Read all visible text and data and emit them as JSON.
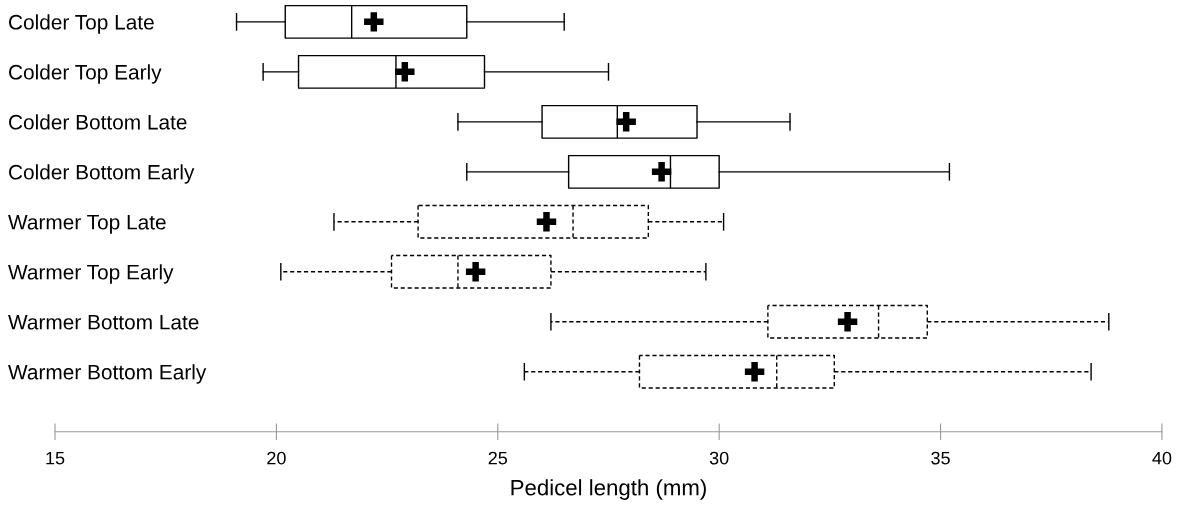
{
  "chart_data": {
    "type": "box",
    "orientation": "horizontal",
    "xlabel": "Pedicel length (mm)",
    "categories": [
      "Colder Top Late",
      "Colder Top Early",
      "Colder Bottom Late",
      "Colder Bottom Early",
      "Warmer Top Late",
      "Warmer Top Early",
      "Warmer Bottom Late",
      "Warmer Bottom Early"
    ],
    "xlim": [
      15,
      40
    ],
    "xticks": [
      15,
      20,
      25,
      30,
      35,
      40
    ],
    "grid": false,
    "legend": false,
    "series": [
      {
        "color": "#000000",
        "line_style": "solid",
        "boxes": [
          {
            "low": 19.1,
            "q1": 20.2,
            "median": 21.7,
            "q3": 24.3,
            "high": 26.5,
            "mean": 22.2
          },
          {
            "low": 19.7,
            "q1": 20.5,
            "median": 22.7,
            "q3": 24.7,
            "high": 27.5,
            "mean": 22.9
          },
          {
            "low": 24.1,
            "q1": 26.0,
            "median": 27.7,
            "q3": 29.5,
            "high": 31.6,
            "mean": 27.9
          },
          {
            "low": 24.3,
            "q1": 26.6,
            "median": 28.9,
            "q3": 30.0,
            "high": 35.2,
            "mean": 28.7
          },
          null,
          null,
          null,
          null
        ]
      },
      {
        "color": "#000000",
        "line_style": "dashed",
        "boxes": [
          null,
          null,
          null,
          null,
          {
            "low": 21.3,
            "q1": 23.2,
            "median": 26.7,
            "q3": 28.4,
            "high": 30.1,
            "mean": 26.1
          },
          {
            "low": 20.1,
            "q1": 22.6,
            "median": 24.1,
            "q3": 26.2,
            "high": 29.7,
            "mean": 24.5
          },
          {
            "low": 26.2,
            "q1": 31.1,
            "median": 33.6,
            "q3": 34.7,
            "high": 38.8,
            "mean": 32.9
          },
          {
            "low": 25.6,
            "q1": 28.2,
            "median": 31.3,
            "q3": 32.6,
            "high": 38.4,
            "mean": 30.8
          }
        ]
      }
    ]
  }
}
